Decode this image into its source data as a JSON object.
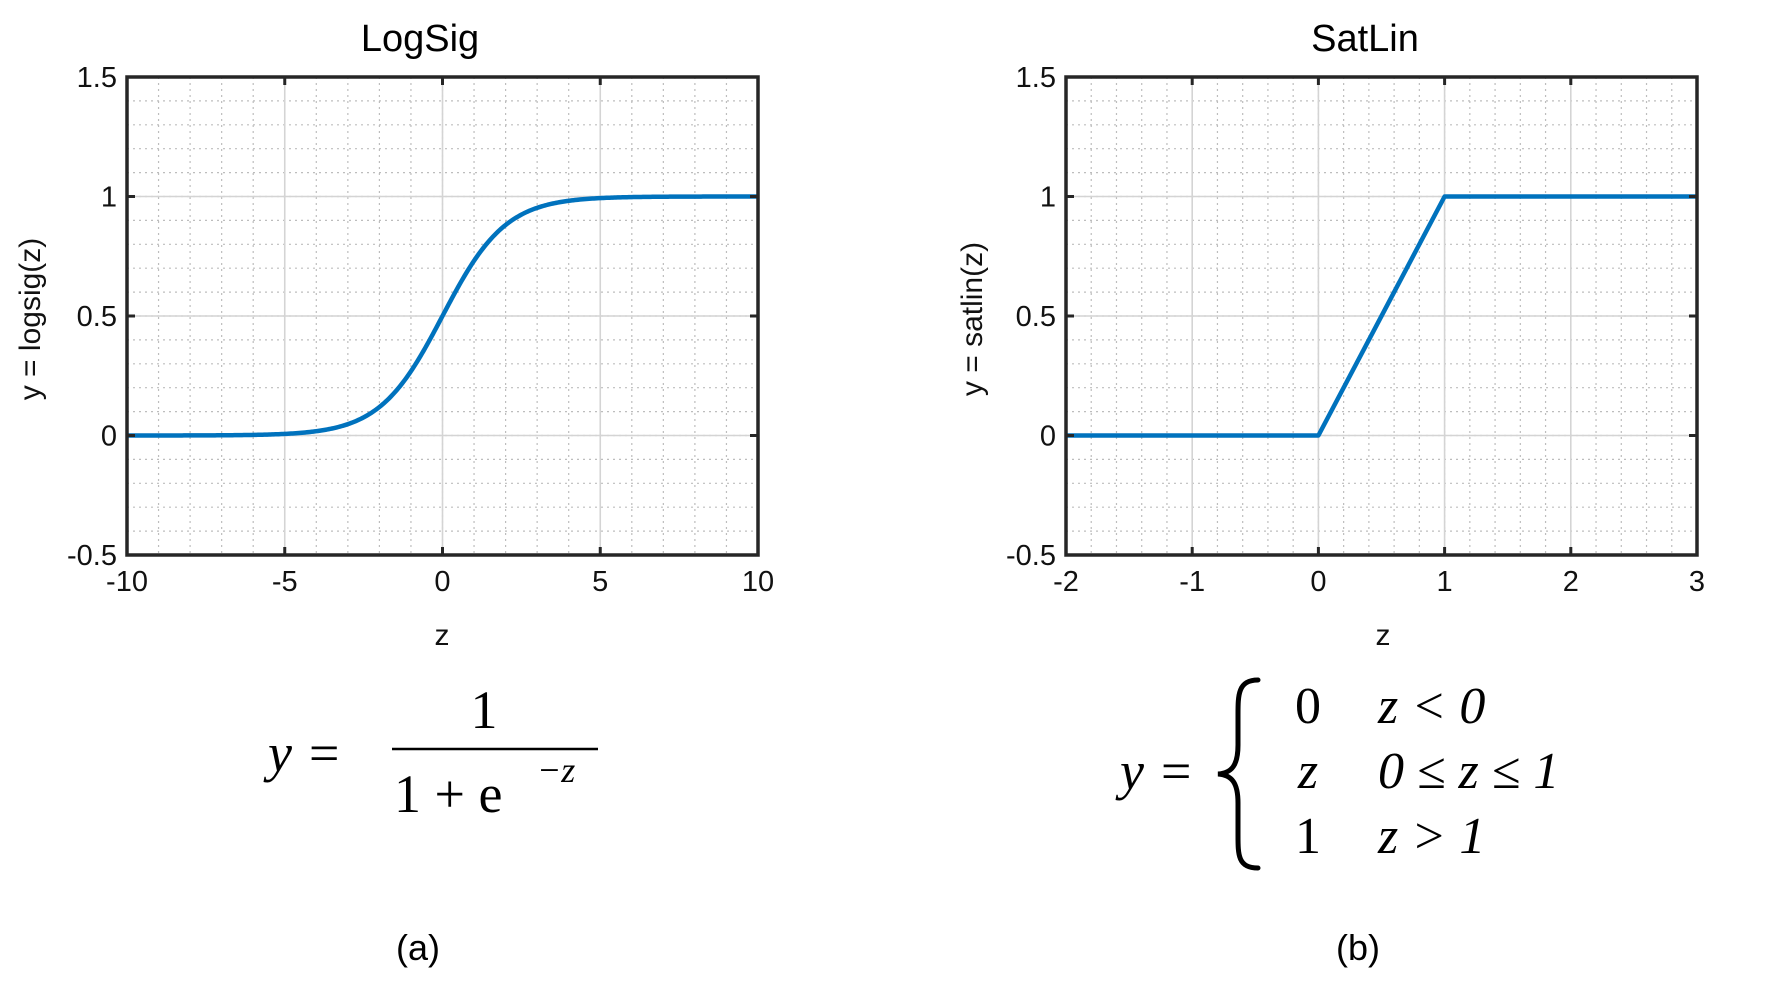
{
  "chart_data": [
    {
      "type": "line",
      "title": "LogSig",
      "xlabel": "z",
      "ylabel": "y = logsig(z)",
      "xlim": [
        -10,
        10
      ],
      "ylim": [
        -0.5,
        1.5
      ],
      "xticks": [
        -10,
        -5,
        0,
        5,
        10
      ],
      "xtick_labels": [
        "-10",
        "-5",
        "0",
        "5",
        "10"
      ],
      "yticks": [
        -0.5,
        0,
        0.5,
        1,
        1.5
      ],
      "ytick_labels": [
        "-0.5",
        "0",
        "0.5",
        "1",
        "1.5"
      ],
      "grid": true,
      "minor_grid": true,
      "line_color": "#0072BD",
      "series": [
        {
          "x": [
            -10,
            -8,
            -6,
            -5,
            -4,
            -3,
            -2,
            -1.5,
            -1,
            -0.5,
            0,
            0.5,
            1,
            1.5,
            2,
            3,
            4,
            5,
            6,
            8,
            10
          ],
          "values": [
            4.54e-05,
            0.000335,
            0.00247,
            0.00669,
            0.018,
            0.0474,
            0.1192,
            0.1824,
            0.2689,
            0.3775,
            0.5,
            0.6225,
            0.7311,
            0.8176,
            0.8808,
            0.9526,
            0.982,
            0.9933,
            0.9975,
            0.9997,
            0.99995
          ]
        }
      ],
      "formula": {
        "lhs": "y =",
        "numerator": "1",
        "denominator": "1 + e",
        "exponent": "−z"
      },
      "caption": "(a)"
    },
    {
      "type": "line",
      "title": "SatLin",
      "xlabel": "z",
      "ylabel": "y = satlin(z)",
      "xlim": [
        -2,
        3
      ],
      "ylim": [
        -0.5,
        1.5
      ],
      "xticks": [
        -2,
        -1,
        0,
        1,
        2,
        3
      ],
      "xtick_labels": [
        "-2",
        "-1",
        "0",
        "1",
        "2",
        "3"
      ],
      "yticks": [
        -0.5,
        0,
        0.5,
        1,
        1.5
      ],
      "ytick_labels": [
        "-0.5",
        "0",
        "0.5",
        "1",
        "1.5"
      ],
      "grid": true,
      "minor_grid": true,
      "line_color": "#0072BD",
      "series": [
        {
          "x": [
            -2,
            0,
            1,
            3
          ],
          "values": [
            0,
            0,
            1,
            1
          ]
        }
      ],
      "formula": {
        "lhs": "y =",
        "cases": [
          {
            "value": "z_zero_label",
            "v": "0",
            "cond": "z < 0"
          },
          {
            "value": "z_mid_label",
            "v": "z",
            "cond": "0 ≤ z ≤ 1"
          },
          {
            "value": "z_one_label",
            "v": "1",
            "cond": "z > 1"
          }
        ]
      },
      "caption": "(b)"
    }
  ]
}
